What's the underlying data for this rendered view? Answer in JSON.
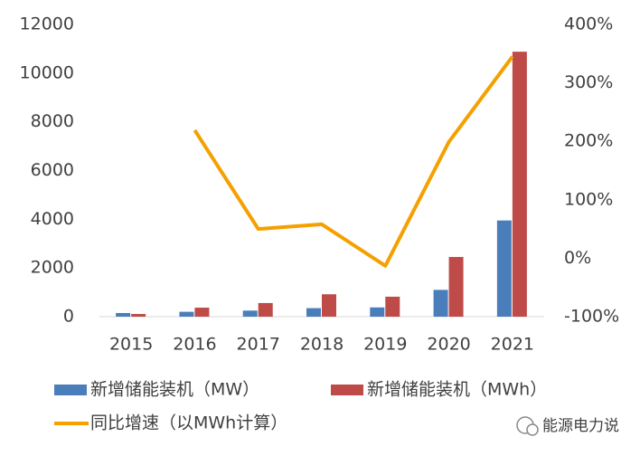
{
  "chart_data": {
    "type": "bar_line",
    "categories": [
      "2015",
      "2016",
      "2017",
      "2018",
      "2019",
      "2020",
      "2021"
    ],
    "series": [
      {
        "name": "新增储能装机（MW）",
        "type": "bar",
        "color": "#4a7ebb",
        "values": [
          150,
          200,
          250,
          350,
          380,
          1100,
          3950
        ]
      },
      {
        "name": "新增储能装机（MWh）",
        "type": "bar",
        "color": "#be4b48",
        "values": [
          110,
          370,
          560,
          920,
          820,
          2450,
          10880
        ]
      },
      {
        "name": "同比增速（以MWh计算）",
        "type": "line",
        "axis": "y2",
        "color": "#f5a000",
        "values": [
          null,
          219,
          50,
          58,
          -13,
          199,
          345
        ]
      }
    ],
    "ylim": [
      0,
      12000
    ],
    "yticks": [
      0,
      2000,
      4000,
      6000,
      8000,
      10000,
      12000
    ],
    "y2lim": [
      -100,
      400
    ],
    "y2ticks": [
      {
        "value": -100,
        "label": "-100%"
      },
      {
        "value": 0,
        "label": "0%"
      },
      {
        "value": 100,
        "label": "100%"
      },
      {
        "value": 200,
        "label": "200%"
      },
      {
        "value": 300,
        "label": "300%"
      },
      {
        "value": 400,
        "label": "400%"
      }
    ],
    "grid": false,
    "watermark": "能源电力说"
  }
}
